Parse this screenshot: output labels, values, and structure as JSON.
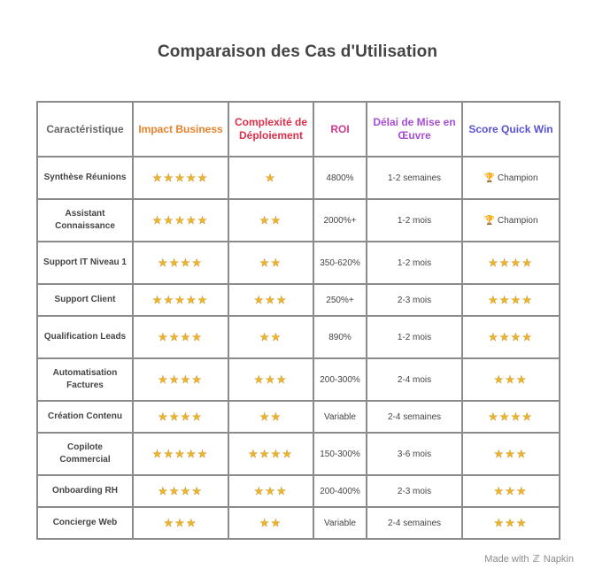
{
  "title": "Comparaison des Cas d'Utilisation",
  "headers": [
    "Caractéristique",
    "Impact Business",
    "Complexité de Déploiement",
    "ROI",
    "Délai de Mise en Œuvre",
    "Score Quick Win"
  ],
  "rows": [
    {
      "feature": "Synthèse Réunions",
      "impact": "★★★★★",
      "complexity": "★",
      "roi": "4800%",
      "delay": "1-2 semaines",
      "score": "Champion",
      "score_icon": "trophy-icon"
    },
    {
      "feature": "Assistant Connaissance",
      "impact": "★★★★★",
      "complexity": "★★",
      "roi": "2000%+",
      "delay": "1-2 mois",
      "score": "Champion",
      "score_icon": "trophy-icon"
    },
    {
      "feature": "Support IT Niveau 1",
      "impact": "★★★★",
      "complexity": "★★",
      "roi": "350-620%",
      "delay": "1-2 mois",
      "score": "★★★★"
    },
    {
      "feature": "Support Client",
      "impact": "★★★★★",
      "complexity": "★★★",
      "roi": "250%+",
      "delay": "2-3 mois",
      "score": "★★★★"
    },
    {
      "feature": "Qualification Leads",
      "impact": "★★★★",
      "complexity": "★★",
      "roi": "890%",
      "delay": "1-2 mois",
      "score": "★★★★"
    },
    {
      "feature": "Automatisation Factures",
      "impact": "★★★★",
      "complexity": "★★★",
      "roi": "200-300%",
      "delay": "2-4 mois",
      "score": "★★★"
    },
    {
      "feature": "Création Contenu",
      "impact": "★★★★",
      "complexity": "★★",
      "roi": "Variable",
      "delay": "2-4 semaines",
      "score": "★★★★"
    },
    {
      "feature": "Copilote Commercial",
      "impact": "★★★★★",
      "complexity": "★★★★",
      "roi": "150-300%",
      "delay": "3-6 mois",
      "score": "★★★"
    },
    {
      "feature": "Onboarding RH",
      "impact": "★★★★",
      "complexity": "★★★",
      "roi": "200-400%",
      "delay": "2-3 mois",
      "score": "★★★"
    },
    {
      "feature": "Concierge Web",
      "impact": "★★★",
      "complexity": "★★",
      "roi": "Variable",
      "delay": "2-4 semaines",
      "score": "★★★"
    }
  ],
  "colors": {
    "impact": "#e8822a",
    "complexity": "#dc2f4a",
    "roi": "#d23b8c",
    "delay": "#a84fd6",
    "score": "#5a52d5",
    "star": "#f0b429"
  },
  "watermark": {
    "prefix": "Made with",
    "brand": "Napkin"
  }
}
